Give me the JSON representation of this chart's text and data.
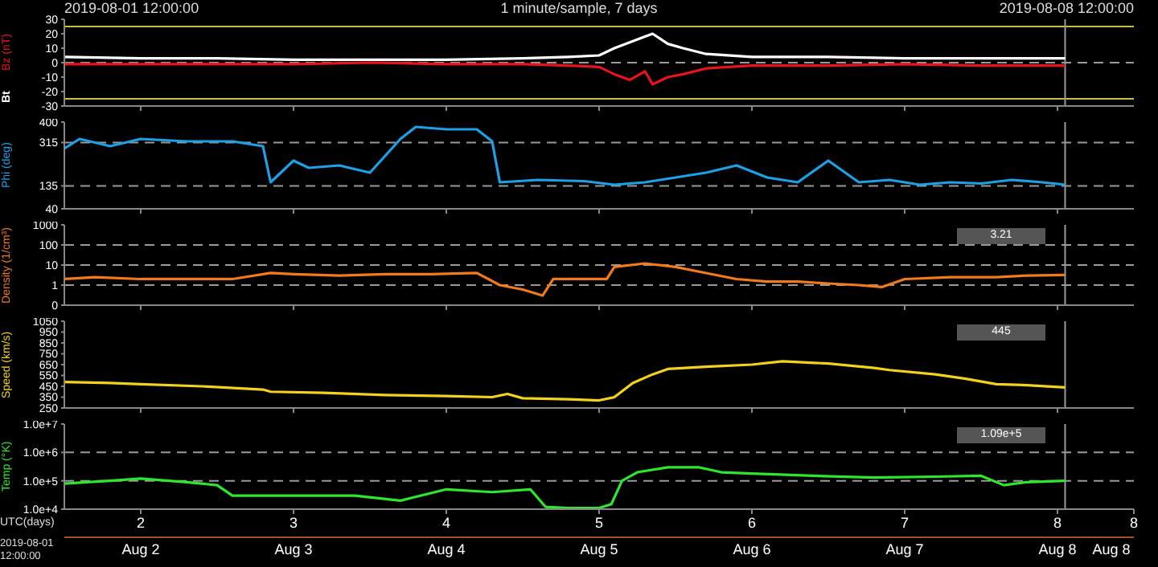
{
  "chart_data": [
    {
      "type": "line",
      "title": "1 minute/sample, 7 days",
      "ylabel": "Bz (nT)",
      "annotations": [
        "2019-08-01 12:00:00",
        "2019-08-08 12:00:00"
      ],
      "xlim": [
        1.5,
        8.5
      ],
      "xticks": [
        2,
        3,
        4,
        5,
        6,
        7,
        8
      ],
      "tick_labels": "y",
      "ylim": [
        -30,
        30
      ],
      "yticks": [
        -30,
        -20,
        -10,
        0,
        10,
        20,
        30
      ],
      "marker": "none",
      "line_style": "solid",
      "ref_lines": [
        {
          "axis": "y",
          "value": 25,
          "color": "#c8c040",
          "line_style": "solid"
        },
        {
          "axis": "y",
          "value": -25,
          "color": "#c8c040",
          "line_style": "solid"
        },
        {
          "axis": "y",
          "value": 0,
          "color": "#9a9a9a",
          "line_style": "dashed"
        },
        {
          "axis": "x",
          "value": 8.05,
          "color": "#9a9a9a",
          "line_style": "solid"
        }
      ],
      "series": [
        {
          "name": "Bt",
          "color": "#ffffff",
          "x": [
            1.5,
            2,
            2.5,
            3,
            3.5,
            4,
            4.5,
            4.8,
            5.0,
            5.1,
            5.2,
            5.3,
            5.35,
            5.45,
            5.55,
            5.7,
            6,
            6.5,
            7,
            7.5,
            8.05
          ],
          "values": [
            4,
            3,
            3,
            2,
            2,
            2,
            3,
            4,
            5,
            10,
            14,
            18,
            20,
            13,
            10,
            6,
            4,
            4,
            3,
            3,
            3
          ]
        },
        {
          "color": "#e8141c",
          "x": [
            1.5,
            2,
            2.5,
            3,
            3.5,
            4,
            4.5,
            4.8,
            5.0,
            5.1,
            5.2,
            5.3,
            5.35,
            5.45,
            5.55,
            5.7,
            6,
            6.5,
            7,
            7.5,
            8.05
          ],
          "values": [
            -1,
            -1,
            -1,
            -1,
            0,
            -1,
            -1,
            -2,
            -3,
            -8,
            -12,
            -6,
            -15,
            -10,
            -8,
            -4,
            -2,
            -2,
            -1,
            -2,
            -2
          ]
        }
      ]
    },
    {
      "type": "line",
      "ylabel": "Phi (deg)",
      "xlim": [
        1.5,
        8.5
      ],
      "xticks": [
        2,
        3,
        4,
        5,
        6,
        7,
        8
      ],
      "tick_labels": "y",
      "ylim": [
        40,
        400
      ],
      "yticks": [
        40,
        135,
        315,
        400
      ],
      "marker": "none",
      "line_style": "solid",
      "ref_lines": [
        {
          "axis": "y",
          "value": 315,
          "color": "#9a9a9a",
          "line_style": "dashed"
        },
        {
          "axis": "y",
          "value": 135,
          "color": "#9a9a9a",
          "line_style": "dashed"
        },
        {
          "axis": "x",
          "value": 8.05,
          "color": "#9a9a9a",
          "line_style": "solid"
        }
      ],
      "series": [
        {
          "color": "#1ea0e6",
          "x": [
            1.5,
            1.6,
            1.8,
            2.0,
            2.3,
            2.6,
            2.8,
            2.85,
            3.0,
            3.1,
            3.3,
            3.5,
            3.7,
            3.8,
            4.0,
            4.2,
            4.3,
            4.35,
            4.6,
            4.9,
            5.1,
            5.3,
            5.5,
            5.7,
            5.9,
            6.1,
            6.3,
            6.5,
            6.7,
            6.9,
            7.1,
            7.3,
            7.5,
            7.7,
            7.9,
            8.05
          ],
          "values": [
            290,
            330,
            300,
            330,
            320,
            320,
            300,
            150,
            240,
            210,
            220,
            190,
            330,
            380,
            370,
            370,
            320,
            150,
            160,
            155,
            140,
            150,
            170,
            190,
            220,
            170,
            150,
            240,
            150,
            160,
            140,
            150,
            145,
            160,
            150,
            140
          ]
        }
      ]
    },
    {
      "type": "line",
      "ylabel": "Density (1/cm³)",
      "annotations": [
        "3.21"
      ],
      "log": true,
      "xlim": [
        1.5,
        8.5
      ],
      "xticks": [
        2,
        3,
        4,
        5,
        6,
        7,
        8
      ],
      "tick_labels": "y",
      "ylim": [
        0.1,
        1000
      ],
      "yticks": [
        {
          "value": 0.1,
          "label": "0"
        },
        1,
        10,
        100,
        1000
      ],
      "marker": "none",
      "line_style": "solid",
      "ref_lines": [
        {
          "axis": "y",
          "value": 100,
          "color": "#9a9a9a",
          "line_style": "dashed"
        },
        {
          "axis": "y",
          "value": 10,
          "color": "#9a9a9a",
          "line_style": "dashed"
        },
        {
          "axis": "y",
          "value": 1,
          "color": "#9a9a9a",
          "line_style": "dashed"
        },
        {
          "axis": "x",
          "value": 8.05,
          "color": "#9a9a9a",
          "line_style": "solid"
        }
      ],
      "series": [
        {
          "color": "#f07a1c",
          "x": [
            1.5,
            1.7,
            2.0,
            2.3,
            2.6,
            2.85,
            3.0,
            3.3,
            3.6,
            3.9,
            4.2,
            4.35,
            4.5,
            4.63,
            4.7,
            4.9,
            5.05,
            5.1,
            5.3,
            5.5,
            5.7,
            5.9,
            6.1,
            6.3,
            6.5,
            6.7,
            6.85,
            7.0,
            7.3,
            7.6,
            7.8,
            8.05
          ],
          "values": [
            2,
            2.5,
            2,
            2,
            2,
            4,
            3.5,
            3,
            3.5,
            3.5,
            4,
            1,
            0.6,
            0.3,
            2,
            2,
            2,
            8,
            12,
            8,
            4,
            2,
            1.5,
            1.5,
            1.2,
            1,
            0.8,
            2,
            2.5,
            2.5,
            3,
            3.2
          ]
        }
      ]
    },
    {
      "type": "line",
      "ylabel": "Speed (km/s)",
      "annotations": [
        "445"
      ],
      "xlim": [
        1.5,
        8.5
      ],
      "xticks": [
        2,
        3,
        4,
        5,
        6,
        7,
        8
      ],
      "tick_labels": "y",
      "ylim": [
        250,
        1050
      ],
      "yticks": [
        250,
        350,
        450,
        550,
        650,
        750,
        850,
        950,
        1050
      ],
      "marker": "none",
      "line_style": "solid",
      "ref_lines": [
        {
          "axis": "x",
          "value": 8.05,
          "color": "#9a9a9a",
          "line_style": "solid"
        }
      ],
      "series": [
        {
          "color": "#f2d21c",
          "x": [
            1.5,
            1.8,
            2.0,
            2.4,
            2.8,
            2.85,
            3.2,
            3.6,
            4.0,
            4.3,
            4.4,
            4.5,
            4.8,
            5.0,
            5.1,
            5.22,
            5.35,
            5.45,
            5.7,
            6.0,
            6.2,
            6.5,
            6.8,
            6.9,
            7.2,
            7.4,
            7.6,
            7.8,
            8.05
          ],
          "values": [
            490,
            480,
            470,
            450,
            420,
            400,
            390,
            370,
            360,
            350,
            380,
            340,
            330,
            320,
            350,
            480,
            560,
            610,
            630,
            650,
            680,
            660,
            620,
            600,
            560,
            520,
            470,
            460,
            440
          ]
        }
      ]
    },
    {
      "type": "line",
      "ylabel": "Temp (°K)",
      "xlabel": "UTC(days)",
      "annotations": [
        "1.09e+5",
        "2019-08-01 12:00:00"
      ],
      "log": true,
      "xlim": [
        1.5,
        8.5
      ],
      "xticks": [
        2,
        3,
        4,
        5,
        6,
        7,
        8,
        {
          "value": 8.5,
          "label": "8"
        }
      ],
      "x2lim": [
        "2019-08-01T12:00",
        "2019-08-08T12:00"
      ],
      "x2ticks": [
        {
          "value": "2019-08-02",
          "label": "Aug 2"
        },
        {
          "value": "2019-08-03",
          "label": "Aug 3"
        },
        {
          "value": "2019-08-04",
          "label": "Aug 4"
        },
        {
          "value": "2019-08-05",
          "label": "Aug 5"
        },
        {
          "value": "2019-08-06",
          "label": "Aug 6"
        },
        {
          "value": "2019-08-07",
          "label": "Aug 7"
        },
        {
          "value": "2019-08-08",
          "label": "Aug 8"
        },
        {
          "value": "2019-08-08T12:00",
          "label": "Aug 8"
        }
      ],
      "ylim": [
        10000,
        10000000
      ],
      "yticks": [
        {
          "value": 10000,
          "label": "1.0e+4"
        },
        {
          "value": 100000,
          "label": "1.0e+5"
        },
        {
          "value": 1000000,
          "label": "1.0e+6"
        },
        {
          "value": 10000000,
          "label": "1.0e+7"
        }
      ],
      "marker": "none",
      "line_style": "solid",
      "ref_lines": [
        {
          "axis": "y",
          "value": 1000000,
          "color": "#9a9a9a",
          "line_style": "dashed"
        },
        {
          "axis": "y",
          "value": 100000,
          "color": "#9a9a9a",
          "line_style": "dashed"
        },
        {
          "axis": "x",
          "value": 8.05,
          "color": "#9a9a9a",
          "line_style": "solid"
        }
      ],
      "series": [
        {
          "color": "#2ee62e",
          "x": [
            1.5,
            1.8,
            2.0,
            2.3,
            2.5,
            2.6,
            3.0,
            3.4,
            3.7,
            4.0,
            4.3,
            4.55,
            4.65,
            4.8,
            5.0,
            5.08,
            5.15,
            5.25,
            5.45,
            5.65,
            5.8,
            6.0,
            6.4,
            6.8,
            7.2,
            7.5,
            7.65,
            7.8,
            8.05
          ],
          "values": [
            80000,
            100000,
            120000,
            90000,
            70000,
            30000,
            30000,
            30000,
            20000,
            50000,
            40000,
            50000,
            12000,
            11000,
            11000,
            15000,
            100000,
            200000,
            300000,
            300000,
            200000,
            180000,
            150000,
            130000,
            140000,
            150000,
            70000,
            90000,
            100000
          ]
        }
      ]
    }
  ]
}
